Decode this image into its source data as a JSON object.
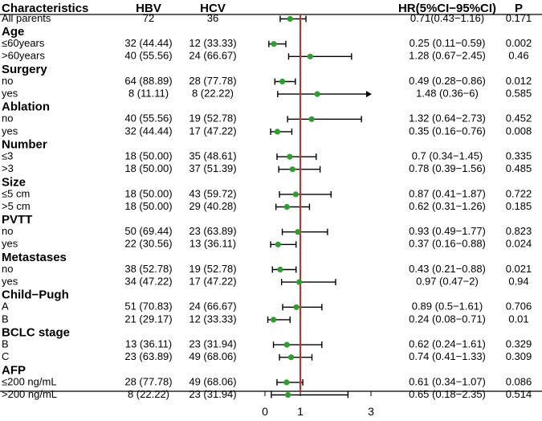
{
  "chart_data": {
    "type": "forest",
    "headers": {
      "characteristics": "Characteristics",
      "group1": "HBV",
      "group2": "HCV",
      "hr": "HR(5%CI−95%CI)",
      "p": "P"
    },
    "reference_line": 1,
    "x_ticks": [
      0,
      1,
      3
    ],
    "x_range": [
      0,
      3
    ],
    "marker_color": "#2ca02c",
    "ref_line_color": "#d62728",
    "rows": [
      {
        "kind": "item",
        "bold": false,
        "label": "All parents",
        "hbv": "72",
        "hcv": "36",
        "hr_text": "0.71(0.43−1.16)",
        "p": "0.171",
        "hr": 0.71,
        "lo": 0.43,
        "hi": 1.16
      },
      {
        "kind": "header",
        "label": "Age"
      },
      {
        "kind": "item",
        "label": "≤60years",
        "hbv": "32 (44.44)",
        "hcv": "12 (33.33)",
        "hr_text": "0.25 (0.11−0.59)",
        "p": "0.002",
        "hr": 0.25,
        "lo": 0.11,
        "hi": 0.59
      },
      {
        "kind": "item",
        "label": ">60years",
        "hbv": "40 (55.56)",
        "hcv": "24 (66.67)",
        "hr_text": "1.28 (0.67−2.45)",
        "p": "0.46",
        "hr": 1.28,
        "lo": 0.67,
        "hi": 2.45
      },
      {
        "kind": "header",
        "label": "Surgery"
      },
      {
        "kind": "item",
        "label": "no",
        "hbv": "64 (88.89)",
        "hcv": "28 (77.78)",
        "hr_text": "0.49 (0.28−0.86)",
        "p": "0.012",
        "hr": 0.49,
        "lo": 0.28,
        "hi": 0.86
      },
      {
        "kind": "item",
        "label": "yes",
        "hbv": "8 (11.11)",
        "hcv": "8 (22.22)",
        "hr_text": "1.48 (0.36−6)",
        "p": "0.585",
        "hr": 1.48,
        "lo": 0.36,
        "hi": 6,
        "arrow": true
      },
      {
        "kind": "header",
        "label": "Ablation"
      },
      {
        "kind": "item",
        "label": "no",
        "hbv": "40 (55.56)",
        "hcv": "19 (52.78)",
        "hr_text": "1.32 (0.64−2.73)",
        "p": "0.452",
        "hr": 1.32,
        "lo": 0.64,
        "hi": 2.73
      },
      {
        "kind": "item",
        "label": "yes",
        "hbv": "32 (44.44)",
        "hcv": "17 (47.22)",
        "hr_text": "0.35 (0.16−0.76)",
        "p": "0.008",
        "hr": 0.35,
        "lo": 0.16,
        "hi": 0.76
      },
      {
        "kind": "header",
        "label": "Number"
      },
      {
        "kind": "item",
        "label": "≤3",
        "hbv": "18 (50.00)",
        "hcv": "35 (48.61)",
        "hr_text": "0.7 (0.34−1.45)",
        "p": "0.335",
        "hr": 0.7,
        "lo": 0.34,
        "hi": 1.45
      },
      {
        "kind": "item",
        "label": ">3",
        "hbv": "18 (50.00)",
        "hcv": "37 (51.39)",
        "hr_text": "0.78 (0.39−1.56)",
        "p": "0.485",
        "hr": 0.78,
        "lo": 0.39,
        "hi": 1.56
      },
      {
        "kind": "header",
        "label": "Size"
      },
      {
        "kind": "item",
        "label": "≤5 cm",
        "hbv": "18 (50.00)",
        "hcv": "43 (59.72)",
        "hr_text": "0.87 (0.41−1.87)",
        "p": "0.722",
        "hr": 0.87,
        "lo": 0.41,
        "hi": 1.87
      },
      {
        "kind": "item",
        "label": ">5 cm",
        "hbv": "18 (50.00)",
        "hcv": "29 (40.28)",
        "hr_text": "0.62 (0.31−1.26)",
        "p": "0.185",
        "hr": 0.62,
        "lo": 0.31,
        "hi": 1.26
      },
      {
        "kind": "header",
        "label": "PVTT"
      },
      {
        "kind": "item",
        "label": "no",
        "hbv": "50 (69.44)",
        "hcv": "23 (63.89)",
        "hr_text": "0.93 (0.49−1.77)",
        "p": "0.823",
        "hr": 0.93,
        "lo": 0.49,
        "hi": 1.77
      },
      {
        "kind": "item",
        "label": "yes",
        "hbv": "22 (30.56)",
        "hcv": "13 (36.11)",
        "hr_text": "0.37 (0.16−0.88)",
        "p": "0.024",
        "hr": 0.37,
        "lo": 0.16,
        "hi": 0.88
      },
      {
        "kind": "header",
        "label": "Metastases"
      },
      {
        "kind": "item",
        "label": "no",
        "hbv": "38 (52.78)",
        "hcv": "19 (52.78)",
        "hr_text": "0.43 (0.21−0.88)",
        "p": "0.021",
        "hr": 0.43,
        "lo": 0.21,
        "hi": 0.88
      },
      {
        "kind": "item",
        "label": "yes",
        "hbv": "34 (47.22)",
        "hcv": "17 (47.22)",
        "hr_text": "0.97 (0.47−2)",
        "p": "0.94",
        "hr": 0.97,
        "lo": 0.47,
        "hi": 2
      },
      {
        "kind": "header",
        "label": "Child−Pugh"
      },
      {
        "kind": "item",
        "label": "A",
        "hbv": "51 (70.83)",
        "hcv": "24 (66.67)",
        "hr_text": "0.89 (0.5−1.61)",
        "p": "0.706",
        "hr": 0.89,
        "lo": 0.5,
        "hi": 1.61
      },
      {
        "kind": "item",
        "label": "B",
        "hbv": "21 (29.17)",
        "hcv": "12 (33.33)",
        "hr_text": "0.24 (0.08−0.71)",
        "p": "0.01",
        "hr": 0.24,
        "lo": 0.08,
        "hi": 0.71
      },
      {
        "kind": "header",
        "label": "BCLC stage"
      },
      {
        "kind": "item",
        "label": "B",
        "hbv": "13 (36.11)",
        "hcv": "23 (31.94)",
        "hr_text": "0.62 (0.24−1.61)",
        "p": "0.329",
        "hr": 0.62,
        "lo": 0.24,
        "hi": 1.61
      },
      {
        "kind": "item",
        "label": "C",
        "hbv": "23 (63.89)",
        "hcv": "49 (68.06)",
        "hr_text": "0.74 (0.41−1.33)",
        "p": "0.309",
        "hr": 0.74,
        "lo": 0.41,
        "hi": 1.33
      },
      {
        "kind": "header",
        "label": "AFP"
      },
      {
        "kind": "item",
        "label": "≤200 ng/mL",
        "hbv": "28 (77.78)",
        "hcv": "49 (68.06)",
        "hr_text": "0.61 (0.34−1.07)",
        "p": "0.086",
        "hr": 0.61,
        "lo": 0.34,
        "hi": 1.07
      },
      {
        "kind": "item",
        "label": ">200 ng/mL",
        "hbv": "8 (22.22)",
        "hcv": "23 (31.94)",
        "hr_text": "0.65 (0.18−2.35)",
        "p": "0.514",
        "hr": 0.65,
        "lo": 0.18,
        "hi": 2.35
      }
    ]
  }
}
